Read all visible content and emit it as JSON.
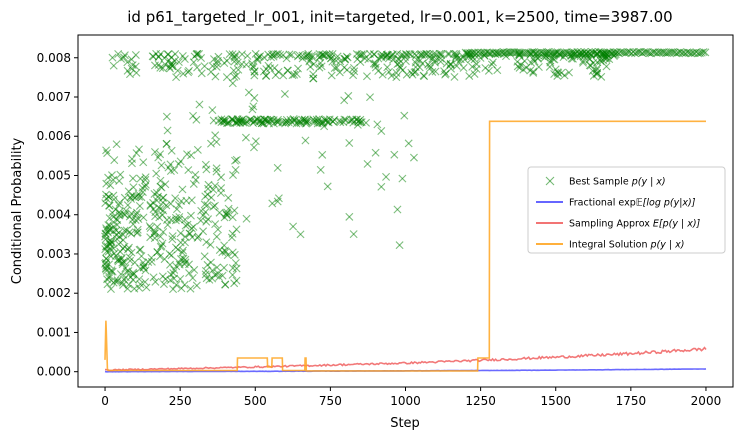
{
  "chart_data": {
    "type": "line",
    "title": "id p61_targeted_lr_001, init=targeted, lr=0.001, k=2500, time=3987.00",
    "xlabel": "Step",
    "ylabel": "Conditional Probability",
    "xlim": [
      -90,
      2090
    ],
    "ylim": [
      -0.00039,
      0.00858
    ],
    "xticks": [
      0,
      250,
      500,
      750,
      1000,
      1250,
      1500,
      1750,
      2000
    ],
    "xtick_labels": [
      "0",
      "250",
      "500",
      "750",
      "1000",
      "1250",
      "1500",
      "1750",
      "2000"
    ],
    "yticks": [
      0,
      0.001,
      0.002,
      0.003,
      0.004,
      0.005,
      0.006,
      0.007,
      0.008
    ],
    "ytick_labels": [
      "0.000",
      "0.001",
      "0.002",
      "0.003",
      "0.004",
      "0.005",
      "0.006",
      "0.007",
      "0.008"
    ],
    "grid": false,
    "legend_position": "center-right",
    "series": [
      {
        "name": "Best Sample p(y | x)",
        "kind": "scatter",
        "marker": "x",
        "color": "#008000",
        "description_clusters": [
          {
            "x_range": [
              0,
              1700
            ],
            "y_range": [
              0.0075,
              0.0082
            ]
          },
          {
            "x_range": [
              350,
              870
            ],
            "y_range": [
              0.0063,
              0.0065
            ]
          },
          {
            "x_range": [
              0,
              400
            ],
            "y_range": [
              0.002,
              0.006
            ]
          },
          {
            "x_range": [
              1700,
              2000
            ],
            "y_range": [
              0.0081,
              0.0082
            ]
          }
        ]
      },
      {
        "name": "Fractional exp𝔼[log p(y|x)]",
        "kind": "line",
        "color": "#5050ff",
        "x": [
          0,
          250,
          500,
          750,
          1000,
          1250,
          1500,
          1750,
          2000
        ],
        "y": [
          0.0,
          5e-06,
          1e-05,
          1.5e-05,
          2.2e-05,
          3e-05,
          4e-05,
          5.5e-05,
          7e-05
        ]
      },
      {
        "name": "Sampling Approx E[p(y | x)]",
        "kind": "line",
        "color": "#f06060",
        "x": [
          0,
          250,
          500,
          750,
          1000,
          1250,
          1500,
          1750,
          2000
        ],
        "y": [
          4e-05,
          8e-05,
          0.00012,
          0.00017,
          0.00022,
          0.00029,
          0.00037,
          0.00046,
          0.00058
        ]
      },
      {
        "name": "Integral Solution p(y | x)",
        "kind": "step",
        "color": "#ffa520",
        "x": [
          0,
          3,
          4,
          8,
          10,
          440,
          441,
          540,
          541,
          555,
          556,
          590,
          591,
          665,
          666,
          669,
          670,
          1240,
          1241,
          1279,
          1280,
          2000
        ],
        "y": [
          0.0003,
          0.0013,
          0.0011,
          8e-05,
          3e-05,
          3e-05,
          0.00035,
          0.00035,
          0.00012,
          0.00012,
          0.00035,
          0.00035,
          3e-05,
          3e-05,
          0.00035,
          0.00035,
          2e-05,
          2e-05,
          0.00035,
          0.00035,
          0.00638,
          0.00638
        ]
      }
    ],
    "legend": [
      {
        "label_prefix": "Best Sample ",
        "label_math": "p(y | x)",
        "color": "#008000",
        "marker": "x"
      },
      {
        "label_prefix": "Fractional exp",
        "label_math": "𝔼[log p(y|x)]",
        "color": "#5050ff",
        "marker": "line"
      },
      {
        "label_prefix": "Sampling Approx ",
        "label_math": "E[p(y | x)]",
        "color": "#f06060",
        "marker": "line"
      },
      {
        "label_prefix": "Integral Solution ",
        "label_math": "p(y | x)",
        "color": "#ffa520",
        "marker": "line"
      }
    ]
  }
}
